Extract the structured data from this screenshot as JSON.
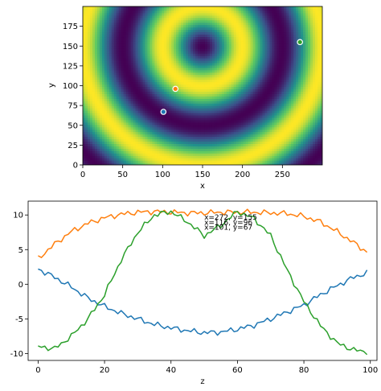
{
  "chart_data": [
    {
      "type": "heatmap",
      "description": "concentric ring pattern centered near (150,150), viridis colormap",
      "xlabel": "x",
      "ylabel": "y",
      "xlim": [
        0,
        300
      ],
      "ylim": [
        0,
        200
      ],
      "xticks": [
        0,
        50,
        100,
        150,
        200,
        250
      ],
      "yticks": [
        0,
        25,
        50,
        75,
        100,
        125,
        150,
        175
      ],
      "center": [
        150,
        150
      ],
      "ring_period": 100,
      "colormap": "viridis",
      "markers": [
        {
          "x": 272,
          "y": 155,
          "color": "#2ca02c"
        },
        {
          "x": 116,
          "y": 96,
          "color": "#ff7f0e"
        },
        {
          "x": 101,
          "y": 67,
          "color": "#1f77b4"
        }
      ]
    },
    {
      "type": "line",
      "xlabel": "z",
      "ylabel": "",
      "xlim": [
        -3,
        102
      ],
      "ylim": [
        -11,
        12
      ],
      "xticks": [
        0,
        20,
        40,
        60,
        80,
        100
      ],
      "yticks": [
        -10,
        -5,
        0,
        5,
        10
      ],
      "series": [
        {
          "color": "#1f77b4",
          "x": [
            0,
            5,
            10,
            15,
            20,
            25,
            30,
            35,
            40,
            45,
            50,
            55,
            60,
            65,
            70,
            75,
            80,
            85,
            90,
            95,
            100
          ],
          "values": [
            2.2,
            1.0,
            -0.4,
            -2.0,
            -3.2,
            -4.2,
            -5.0,
            -5.8,
            -6.3,
            -6.7,
            -7.0,
            -6.9,
            -6.5,
            -5.9,
            -5.0,
            -4.0,
            -3.0,
            -1.5,
            -0.2,
            1.0,
            1.8
          ]
        },
        {
          "color": "#ff7f0e",
          "x": [
            0,
            5,
            10,
            15,
            20,
            25,
            30,
            35,
            40,
            45,
            50,
            55,
            60,
            65,
            70,
            75,
            80,
            85,
            90,
            95,
            100
          ],
          "values": [
            3.7,
            5.8,
            7.6,
            8.8,
            9.6,
            10.1,
            10.4,
            10.5,
            10.4,
            10.3,
            10.3,
            10.4,
            10.4,
            10.4,
            10.3,
            10.2,
            9.8,
            9.0,
            7.6,
            6.0,
            4.3
          ]
        },
        {
          "color": "#2ca02c",
          "x": [
            0,
            5,
            10,
            15,
            20,
            25,
            30,
            35,
            40,
            45,
            50,
            55,
            60,
            65,
            70,
            75,
            80,
            85,
            90,
            95,
            100
          ],
          "values": [
            -9.0,
            -9.3,
            -7.5,
            -5.0,
            -1.5,
            3.5,
            7.5,
            10.0,
            10.5,
            9.0,
            7.0,
            8.5,
            10.5,
            9.5,
            7.0,
            2.0,
            -2.5,
            -6.0,
            -8.5,
            -9.5,
            -9.8
          ]
        }
      ],
      "annotations": [
        {
          "text": "x=272, y=155",
          "x": 50,
          "y": 9.3
        },
        {
          "text": "x=116, y=96",
          "x": 50,
          "y": 8.6
        },
        {
          "text": "x=101, y=67",
          "x": 50,
          "y": 7.9
        }
      ]
    }
  ]
}
